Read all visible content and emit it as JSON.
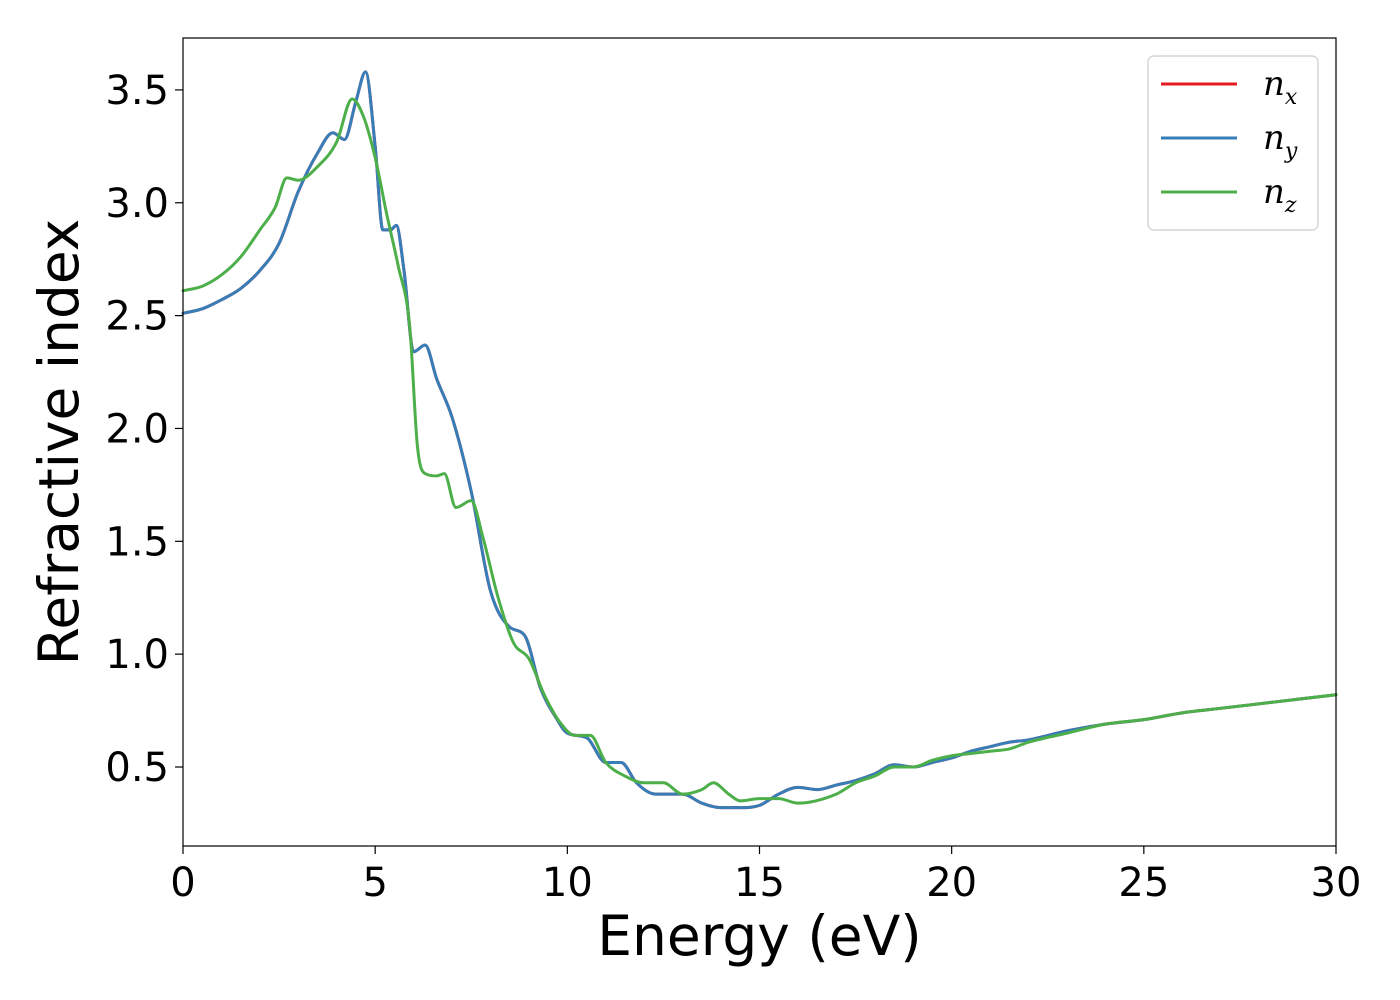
{
  "chart_data": {
    "type": "line",
    "title": "",
    "xlabel": "Energy (eV)",
    "ylabel": "Refractive index",
    "xlim": [
      0,
      30
    ],
    "ylim": [
      0.15,
      3.73
    ],
    "xticks": [
      0,
      5,
      10,
      15,
      20,
      25,
      30
    ],
    "xtick_labels": [
      "0",
      "5",
      "10",
      "15",
      "20",
      "25",
      "30"
    ],
    "yticks": [
      0.5,
      1.0,
      1.5,
      2.0,
      2.5,
      3.0,
      3.5
    ],
    "ytick_labels": [
      "0.5",
      "1.0",
      "1.5",
      "2.0",
      "2.5",
      "3.0",
      "3.5"
    ],
    "grid": false,
    "legend_position": "top-right",
    "series": [
      {
        "name": "n_x",
        "legend_base": "n",
        "legend_sub": "x",
        "color": "#e41a1c",
        "x": [
          0,
          0.5,
          1.0,
          1.5,
          2.0,
          2.5,
          3.0,
          3.5,
          3.9,
          4.2,
          4.5,
          4.75,
          5.0,
          5.2,
          5.4,
          5.55,
          5.75,
          6.0,
          6.3,
          6.6,
          7.0,
          7.5,
          8.0,
          8.5,
          8.9,
          9.3,
          9.7,
          10.0,
          10.5,
          11.0,
          11.4,
          11.8,
          12.3,
          13.0,
          13.5,
          14.0,
          14.5,
          15.0,
          15.5,
          16.0,
          16.5,
          17.0,
          17.5,
          18.0,
          18.5,
          19.0,
          19.5,
          20.0,
          20.5,
          21.0,
          21.5,
          22.0,
          23.0,
          24.0,
          25.0,
          26.0,
          27.0,
          28.0,
          29.0,
          30.0
        ],
        "values": [
          2.51,
          2.53,
          2.57,
          2.62,
          2.7,
          2.82,
          3.05,
          3.22,
          3.31,
          3.28,
          3.45,
          3.58,
          3.25,
          2.88,
          2.88,
          2.9,
          2.7,
          2.34,
          2.37,
          2.22,
          2.05,
          1.72,
          1.28,
          1.12,
          1.08,
          0.85,
          0.72,
          0.65,
          0.63,
          0.52,
          0.52,
          0.43,
          0.38,
          0.38,
          0.34,
          0.32,
          0.32,
          0.33,
          0.38,
          0.41,
          0.4,
          0.42,
          0.44,
          0.47,
          0.51,
          0.5,
          0.52,
          0.54,
          0.57,
          0.59,
          0.61,
          0.62,
          0.66,
          0.69,
          0.71,
          0.74,
          0.76,
          0.78,
          0.8,
          0.82
        ]
      },
      {
        "name": "n_y",
        "legend_base": "n",
        "legend_sub": "y",
        "color": "#377eb8",
        "x": [
          0,
          0.5,
          1.0,
          1.5,
          2.0,
          2.5,
          3.0,
          3.5,
          3.9,
          4.2,
          4.5,
          4.75,
          5.0,
          5.2,
          5.4,
          5.55,
          5.75,
          6.0,
          6.3,
          6.6,
          7.0,
          7.5,
          8.0,
          8.5,
          8.9,
          9.3,
          9.7,
          10.0,
          10.5,
          11.0,
          11.4,
          11.8,
          12.3,
          13.0,
          13.5,
          14.0,
          14.5,
          15.0,
          15.5,
          16.0,
          16.5,
          17.0,
          17.5,
          18.0,
          18.5,
          19.0,
          19.5,
          20.0,
          20.5,
          21.0,
          21.5,
          22.0,
          23.0,
          24.0,
          25.0,
          26.0,
          27.0,
          28.0,
          29.0,
          30.0
        ],
        "values": [
          2.51,
          2.53,
          2.57,
          2.62,
          2.7,
          2.82,
          3.05,
          3.22,
          3.31,
          3.28,
          3.45,
          3.58,
          3.25,
          2.88,
          2.88,
          2.9,
          2.7,
          2.34,
          2.37,
          2.22,
          2.05,
          1.72,
          1.28,
          1.12,
          1.08,
          0.85,
          0.72,
          0.65,
          0.63,
          0.52,
          0.52,
          0.43,
          0.38,
          0.38,
          0.34,
          0.32,
          0.32,
          0.33,
          0.38,
          0.41,
          0.4,
          0.42,
          0.44,
          0.47,
          0.51,
          0.5,
          0.52,
          0.54,
          0.57,
          0.59,
          0.61,
          0.62,
          0.66,
          0.69,
          0.71,
          0.74,
          0.76,
          0.78,
          0.8,
          0.82
        ]
      },
      {
        "name": "n_z",
        "legend_base": "n",
        "legend_sub": "z",
        "color": "#4daf4a",
        "x": [
          0,
          0.5,
          1.0,
          1.5,
          2.0,
          2.4,
          2.7,
          3.0,
          3.5,
          4.0,
          4.4,
          4.7,
          5.0,
          5.3,
          5.6,
          5.9,
          6.1,
          6.3,
          6.6,
          6.8,
          7.1,
          7.5,
          7.8,
          8.2,
          8.6,
          9.0,
          9.4,
          9.8,
          10.2,
          10.6,
          11.0,
          11.5,
          12.0,
          12.5,
          13.0,
          13.5,
          13.8,
          14.2,
          14.5,
          15.0,
          15.5,
          16.0,
          17.0,
          17.5,
          18.0,
          18.5,
          19.0,
          19.5,
          20.0,
          20.5,
          21.0,
          21.5,
          22.0,
          23.0,
          24.0,
          25.0,
          26.0,
          27.0,
          28.0,
          29.0,
          30.0
        ],
        "values": [
          2.61,
          2.63,
          2.68,
          2.76,
          2.88,
          2.98,
          3.11,
          3.1,
          3.16,
          3.27,
          3.46,
          3.38,
          3.2,
          2.95,
          2.72,
          2.45,
          1.92,
          1.8,
          1.79,
          1.8,
          1.65,
          1.68,
          1.52,
          1.25,
          1.05,
          0.98,
          0.82,
          0.7,
          0.64,
          0.64,
          0.52,
          0.46,
          0.43,
          0.43,
          0.38,
          0.4,
          0.43,
          0.38,
          0.35,
          0.36,
          0.36,
          0.34,
          0.38,
          0.43,
          0.46,
          0.5,
          0.5,
          0.53,
          0.55,
          0.56,
          0.57,
          0.58,
          0.61,
          0.65,
          0.69,
          0.71,
          0.74,
          0.76,
          0.78,
          0.8,
          0.82
        ]
      }
    ]
  }
}
